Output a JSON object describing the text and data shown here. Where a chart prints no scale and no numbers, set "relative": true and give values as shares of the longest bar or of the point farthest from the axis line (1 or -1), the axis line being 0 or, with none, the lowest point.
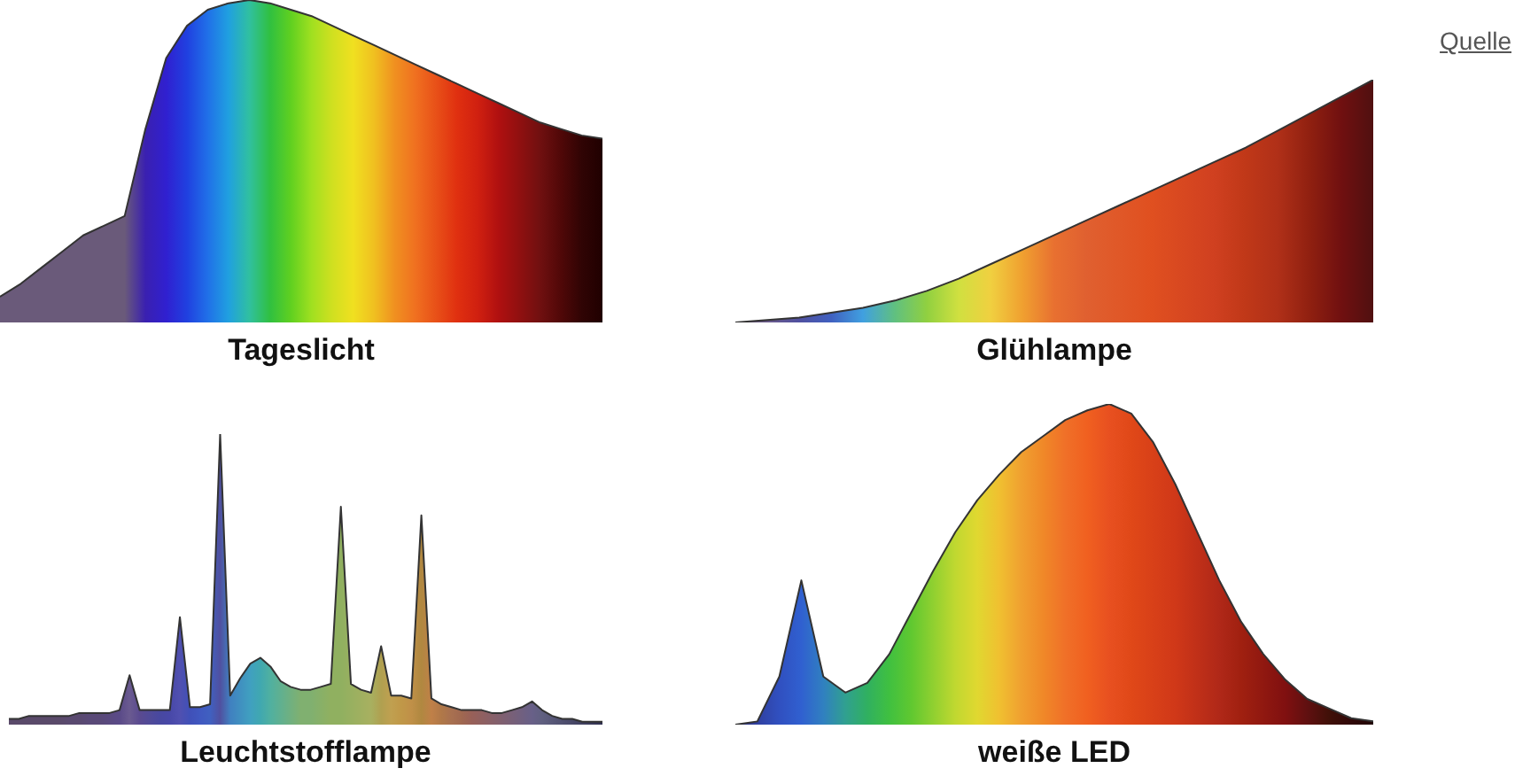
{
  "chart_data": [
    {
      "type": "area",
      "title": "Tageslicht",
      "relative": true,
      "grid": false,
      "legend": false,
      "categories": [
        null,
        null,
        null,
        null,
        null,
        null,
        null,
        null,
        null,
        null,
        null,
        null,
        null,
        null,
        null,
        null,
        null,
        null,
        null,
        null,
        null,
        null,
        null,
        null,
        null,
        null,
        null,
        null,
        null,
        null
      ],
      "series": [
        {
          "color": "#333333",
          "values": [
            0.08,
            0.12,
            0.17,
            0.22,
            0.27,
            0.3,
            0.33,
            0.6,
            0.82,
            0.92,
            0.97,
            0.99,
            1,
            0.99,
            0.97,
            0.95,
            0.92,
            0.89,
            0.86,
            0.83,
            0.8,
            0.77,
            0.74,
            0.71,
            0.68,
            0.65,
            0.62,
            0.6,
            0.58,
            0.57
          ],
          "colors": [
            "#6a5a7a",
            "#6a5a7a",
            "#6a5a7a",
            "#6a5a7a",
            "#6a5a7a",
            "#6a5a7a",
            "#6a5a7a",
            "#3a20b0",
            "#3020d0",
            "#2040e0",
            "#2070e8",
            "#20a0e0",
            "#30c0a0",
            "#30c040",
            "#60d020",
            "#a0e020",
            "#d0e020",
            "#f0e020",
            "#f0c020",
            "#f09020",
            "#f07020",
            "#e85018",
            "#e03010",
            "#d02010",
            "#b01010",
            "#901010",
            "#701010",
            "#500808",
            "#300404",
            "#200000"
          ]
        }
      ]
    },
    {
      "type": "area",
      "title": "Glühlampe",
      "relative": true,
      "grid": false,
      "legend": false,
      "annotations": [
        "Quelle"
      ],
      "categories": [
        null,
        null,
        null,
        null,
        null,
        null,
        null,
        null,
        null,
        null,
        null,
        null,
        null,
        null,
        null,
        null,
        null,
        null,
        null,
        null,
        null
      ],
      "series": [
        {
          "color": "#333333",
          "values": [
            0,
            0.01,
            0.02,
            0.04,
            0.06,
            0.09,
            0.13,
            0.18,
            0.24,
            0.3,
            0.36,
            0.42,
            0.48,
            0.54,
            0.6,
            0.66,
            0.72,
            0.79,
            0.86,
            0.93,
            1
          ],
          "colors": [
            "#6a5a7a",
            "#6a5a8a",
            "#5050a0",
            "#4060c0",
            "#40a0e0",
            "#60c080",
            "#90d040",
            "#d0e040",
            "#f0d040",
            "#f0a030",
            "#e87030",
            "#e06030",
            "#e05828",
            "#e05020",
            "#d84820",
            "#d04020",
            "#c03818",
            "#b03018",
            "#902010",
            "#701010",
            "#501010"
          ]
        }
      ]
    },
    {
      "type": "area",
      "title": "Leuchtstofflampe",
      "relative": true,
      "grid": false,
      "legend": false,
      "categories": [
        null,
        null,
        null,
        null,
        null,
        null,
        null,
        null,
        null,
        null,
        null,
        null,
        null,
        null,
        null,
        null,
        null,
        null,
        null,
        null,
        null,
        null,
        null,
        null,
        null,
        null,
        null,
        null,
        null,
        null,
        null,
        null,
        null,
        null,
        null,
        null,
        null,
        null,
        null,
        null,
        null,
        null,
        null,
        null,
        null,
        null,
        null,
        null,
        null,
        null,
        null,
        null,
        null,
        null,
        null,
        null,
        null,
        null,
        null,
        null
      ],
      "series": [
        {
          "color": "#333333",
          "values": [
            0.02,
            0.02,
            0.03,
            0.03,
            0.03,
            0.03,
            0.03,
            0.04,
            0.04,
            0.04,
            0.04,
            0.05,
            0.17,
            0.05,
            0.05,
            0.05,
            0.05,
            0.37,
            0.06,
            0.06,
            0.07,
            1,
            0.1,
            0.16,
            0.21,
            0.23,
            0.2,
            0.15,
            0.13,
            0.12,
            0.12,
            0.13,
            0.14,
            0.75,
            0.14,
            0.12,
            0.11,
            0.27,
            0.1,
            0.1,
            0.09,
            0.72,
            0.09,
            0.07,
            0.06,
            0.05,
            0.05,
            0.05,
            0.04,
            0.04,
            0.05,
            0.06,
            0.08,
            0.05,
            0.03,
            0.02,
            0.02,
            0.01,
            0.01,
            0.01
          ],
          "colors": [
            "#5a4a6a",
            "#5a4a6a",
            "#5a4a6a",
            "#5a4a6a",
            "#5a4a6a",
            "#5a4a6a",
            "#5a4a70",
            "#5a4a70",
            "#5a4a78",
            "#5a4a78",
            "#5a4a80",
            "#5a4a88",
            "#6a5a90",
            "#5a4a90",
            "#504a98",
            "#4848a0",
            "#4848a8",
            "#5050b0",
            "#4050b8",
            "#4058c0",
            "#4060c0",
            "#5050a0",
            "#4080c0",
            "#4090c0",
            "#40a0c0",
            "#40a8b0",
            "#50b0a0",
            "#60b090",
            "#70b080",
            "#80b070",
            "#80b070",
            "#88b068",
            "#90b060",
            "#90b060",
            "#98b060",
            "#a0b060",
            "#a8b060",
            "#b0a050",
            "#c0a050",
            "#c09848",
            "#c09048",
            "#b08840",
            "#c08048",
            "#b07848",
            "#a87050",
            "#a06850",
            "#986058",
            "#906060",
            "#886068",
            "#806070",
            "#786078",
            "#706080",
            "#686088",
            "#606080",
            "#585878",
            "#505070",
            "#484868",
            "#404060",
            "#383858",
            "#303050"
          ]
        }
      ]
    },
    {
      "type": "area",
      "title": "weiße LED",
      "relative": true,
      "grid": false,
      "legend": false,
      "categories": [
        null,
        null,
        null,
        null,
        null,
        null,
        null,
        null,
        null,
        null,
        null,
        null,
        null,
        null,
        null,
        null,
        null,
        null,
        null,
        null,
        null,
        null,
        null,
        null,
        null,
        null,
        null,
        null,
        null,
        null
      ],
      "series": [
        {
          "color": "#333333",
          "values": [
            0,
            0.01,
            0.15,
            0.45,
            0.15,
            0.1,
            0.13,
            0.22,
            0.35,
            0.48,
            0.6,
            0.7,
            0.78,
            0.85,
            0.9,
            0.95,
            0.98,
            1,
            0.97,
            0.88,
            0.75,
            0.6,
            0.45,
            0.32,
            0.22,
            0.14,
            0.08,
            0.05,
            0.02,
            0.01
          ],
          "colors": [
            "#303070",
            "#3040a0",
            "#3050c0",
            "#3060d0",
            "#3080c0",
            "#30a090",
            "#30b060",
            "#40c040",
            "#60c830",
            "#90d030",
            "#c0d830",
            "#e0d830",
            "#f0c030",
            "#f0a030",
            "#f08828",
            "#f07028",
            "#f06020",
            "#e85020",
            "#e04818",
            "#d84018",
            "#d03818",
            "#c03018",
            "#b02818",
            "#a02010",
            "#901810",
            "#801010",
            "#601010",
            "#401008",
            "#300808",
            "#200404"
          ]
        }
      ]
    }
  ]
}
